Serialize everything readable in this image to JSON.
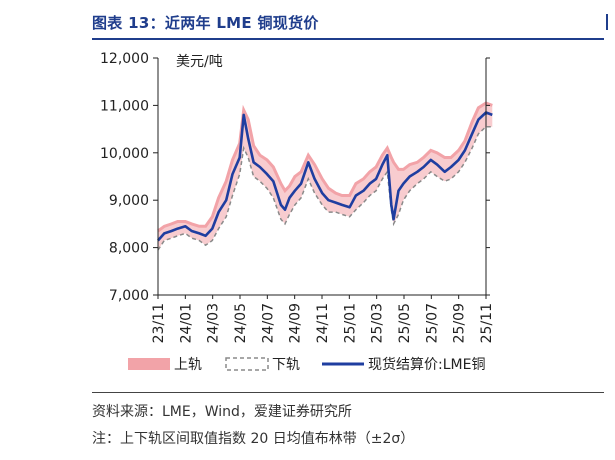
{
  "figure": {
    "title": "图表 13：近两年 LME 铜现货价",
    "source": "资料来源：LME，Wind，爱建证券研究所",
    "note": "注：上下轨区间取值指数 20 日均值布林带（±2σ）"
  },
  "colors": {
    "title": "#1f3d8c",
    "price_line": "#1f3ea0",
    "upper_band": "#f2a3a8",
    "lower_band": "#8a8a8a"
  },
  "chart_data": {
    "type": "line",
    "unit_label": "美元/吨",
    "ylim": [
      7000,
      12000
    ],
    "y_ticks": [
      7000,
      8000,
      9000,
      10000,
      11000,
      12000
    ],
    "y_tick_labels": [
      "7,000",
      "8,000",
      "9,000",
      "10,000",
      "11,000",
      "12,000"
    ],
    "x_tick_labels": [
      "23/11",
      "24/01",
      "24/03",
      "24/05",
      "24/07",
      "24/09",
      "24/11",
      "25/01",
      "25/03",
      "25/05",
      "25/07",
      "25/09",
      "25/11"
    ],
    "x_range": [
      "2023-11",
      "2025-11"
    ],
    "grid": false,
    "legend_position": "bottom",
    "legend": [
      "上轨",
      "下轨",
      "现货结算价:LME铜"
    ],
    "x": [
      "2023-11-01",
      "2023-11-15",
      "2023-12-01",
      "2023-12-15",
      "2024-01-01",
      "2024-01-15",
      "2024-02-01",
      "2024-02-15",
      "2024-03-01",
      "2024-03-15",
      "2024-04-01",
      "2024-04-15",
      "2024-05-01",
      "2024-05-10",
      "2024-05-20",
      "2024-06-01",
      "2024-06-15",
      "2024-07-01",
      "2024-07-15",
      "2024-08-01",
      "2024-08-10",
      "2024-08-20",
      "2024-09-01",
      "2024-09-15",
      "2024-10-01",
      "2024-10-15",
      "2024-11-01",
      "2024-11-15",
      "2024-12-01",
      "2024-12-15",
      "2025-01-01",
      "2025-01-15",
      "2025-02-01",
      "2025-02-15",
      "2025-03-01",
      "2025-03-15",
      "2025-03-26",
      "2025-04-04",
      "2025-04-09",
      "2025-04-20",
      "2025-05-01",
      "2025-05-15",
      "2025-06-01",
      "2025-06-15",
      "2025-07-01",
      "2025-07-15",
      "2025-08-01",
      "2025-08-15",
      "2025-09-01",
      "2025-09-15",
      "2025-10-01",
      "2025-10-15",
      "2025-11-01",
      "2025-11-15"
    ],
    "series": [
      {
        "name": "现货结算价:LME铜",
        "values": [
          8150,
          8300,
          8350,
          8400,
          8450,
          8350,
          8300,
          8250,
          8400,
          8750,
          9000,
          9550,
          9900,
          10800,
          10300,
          9800,
          9700,
          9550,
          9400,
          8900,
          8800,
          9050,
          9200,
          9350,
          9800,
          9450,
          9150,
          9000,
          8950,
          8900,
          8850,
          9100,
          9200,
          9350,
          9450,
          9750,
          9950,
          8900,
          8600,
          9200,
          9350,
          9500,
          9600,
          9700,
          9850,
          9750,
          9600,
          9700,
          9850,
          10050,
          10400,
          10700,
          10850,
          10800
        ]
      },
      {
        "name": "上轨",
        "values": [
          8350,
          8450,
          8500,
          8550,
          8550,
          8500,
          8450,
          8450,
          8650,
          9050,
          9400,
          9850,
          10200,
          10900,
          10700,
          10150,
          9950,
          9850,
          9700,
          9350,
          9200,
          9300,
          9500,
          9600,
          9950,
          9750,
          9450,
          9250,
          9150,
          9100,
          9100,
          9350,
          9450,
          9600,
          9700,
          9950,
          10100,
          9900,
          9800,
          9650,
          9650,
          9750,
          9800,
          9900,
          10050,
          10000,
          9900,
          9900,
          10050,
          10250,
          10650,
          10950,
          11050,
          11000
        ]
      },
      {
        "name": "下轨",
        "values": [
          7950,
          8150,
          8200,
          8250,
          8300,
          8200,
          8150,
          8050,
          8150,
          8400,
          8650,
          9100,
          9550,
          10100,
          9900,
          9500,
          9400,
          9250,
          9050,
          8600,
          8500,
          8700,
          8900,
          9050,
          9450,
          9150,
          8900,
          8750,
          8750,
          8700,
          8650,
          8800,
          8950,
          9100,
          9200,
          9450,
          9600,
          8800,
          8500,
          8700,
          9000,
          9200,
          9350,
          9450,
          9600,
          9500,
          9400,
          9450,
          9600,
          9800,
          10100,
          10400,
          10550,
          10550
        ]
      }
    ]
  }
}
